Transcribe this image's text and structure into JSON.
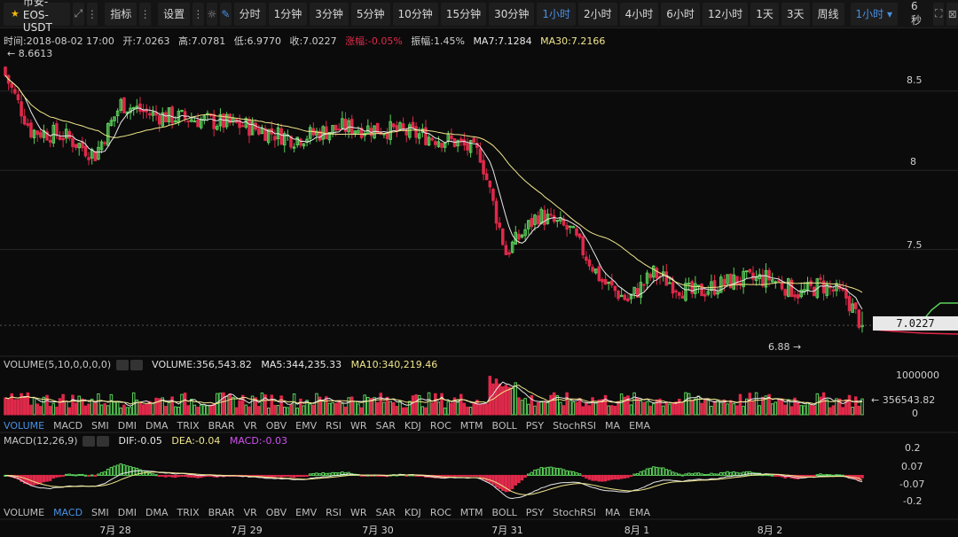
{
  "toolbar": {
    "pair": "币安-EOS-USDT",
    "indicator_label": "指标",
    "settings_label": "设置",
    "intervals": [
      "分时",
      "1分钟",
      "3分钟",
      "5分钟",
      "10分钟",
      "15分钟",
      "30分钟",
      "1小时",
      "2小时",
      "4小时",
      "6小时",
      "12小时",
      "1天",
      "3天",
      "周线"
    ],
    "active_interval": "1小时",
    "interval_dropdown": "1小时",
    "countdown": "6秒"
  },
  "info": {
    "time": "时间:2018-08-02 17:00",
    "open": "开:7.0263",
    "high": "高:7.0781",
    "low": "低:6.9770",
    "close": "收:7.0227",
    "change": "涨幅:-0.05%",
    "amplitude": "振幅:1.45%",
    "ma7": "MA7:7.1284",
    "ma30": "MA30:7.2166"
  },
  "volume_info": {
    "name": "VOLUME(5,10,0,0,0,0)",
    "volume": "VOLUME:356,543.82",
    "ma5": "MA5:344,235.33",
    "ma10": "MA10:340,219.46"
  },
  "macd_info": {
    "name": "MACD(12,26,9)",
    "dif": "DIF:-0.05",
    "dea": "DEA:-0.04",
    "macd": "MACD:-0.03"
  },
  "tabs": [
    "VOLUME",
    "MACD",
    "SMI",
    "DMI",
    "DMA",
    "TRIX",
    "BRAR",
    "VR",
    "OBV",
    "EMV",
    "RSI",
    "WR",
    "SAR",
    "KDJ",
    "ROC",
    "MTM",
    "BOLL",
    "PSY",
    "StochRSI",
    "MA",
    "EMA"
  ],
  "tabs_active_top": "VOLUME",
  "tabs_active_bottom": "MACD",
  "price_axis": {
    "ticks": [
      "8.5",
      "8",
      "7.5"
    ]
  },
  "current_price": "7.0227",
  "high_marker": "8.6613",
  "low_marker": "6.88",
  "volume_axis": {
    "max": "1000000",
    "zero": "0",
    "current": "356543.82"
  },
  "macd_axis": {
    "ticks": [
      "0.2",
      "0.07",
      "-0.07",
      "-0.2"
    ]
  },
  "date_labels": [
    "7月 28",
    "7月 29",
    "7月 30",
    "7月 31",
    "8月 1",
    "8月 2"
  ],
  "colors": {
    "up": "#5bd15b",
    "down": "#e0294a",
    "ma7": "#e8e8e8",
    "ma30": "#f0e68c",
    "accent": "#4a90e2"
  },
  "chart_data": {
    "type": "candlestick",
    "title": "币安-EOS-USDT 1小时",
    "price_range": [
      6.85,
      8.75
    ],
    "price_ticks": [
      8.5,
      8,
      7.5
    ],
    "points": [
      {
        "i": 0,
        "close": 8.6
      },
      {
        "i": 8,
        "close": 8.25
      },
      {
        "i": 18,
        "close": 8.22
      },
      {
        "i": 28,
        "close": 8.1
      },
      {
        "i": 36,
        "close": 8.42
      },
      {
        "i": 46,
        "close": 8.35
      },
      {
        "i": 60,
        "close": 8.32
      },
      {
        "i": 75,
        "close": 8.28
      },
      {
        "i": 90,
        "close": 8.2
      },
      {
        "i": 105,
        "close": 8.27
      },
      {
        "i": 118,
        "close": 8.26
      },
      {
        "i": 130,
        "close": 8.22
      },
      {
        "i": 140,
        "close": 8.18
      },
      {
        "i": 148,
        "close": 8.1
      },
      {
        "i": 156,
        "close": 7.48
      },
      {
        "i": 166,
        "close": 7.72
      },
      {
        "i": 176,
        "close": 7.62
      },
      {
        "i": 186,
        "close": 7.3
      },
      {
        "i": 194,
        "close": 7.18
      },
      {
        "i": 202,
        "close": 7.35
      },
      {
        "i": 214,
        "close": 7.22
      },
      {
        "i": 226,
        "close": 7.3
      },
      {
        "i": 238,
        "close": 7.32
      },
      {
        "i": 248,
        "close": 7.22
      },
      {
        "i": 254,
        "close": 7.28
      },
      {
        "i": 262,
        "close": 7.2
      },
      {
        "i": 267,
        "close": 7.02
      }
    ],
    "total_candles": 268,
    "high": 8.6613,
    "low": 6.88,
    "last_close": 7.0227,
    "volume": {
      "max": 1000000,
      "current": 356543.82,
      "ma5": 344235.33,
      "ma10": 340219.46
    },
    "macd": {
      "dif": -0.05,
      "dea": -0.04,
      "macd": -0.03,
      "range": [
        -0.22,
        0.24
      ]
    },
    "x_labels": [
      "7月 28",
      "7月 29",
      "7月 30",
      "7月 31",
      "8月 1",
      "8月 2"
    ]
  }
}
